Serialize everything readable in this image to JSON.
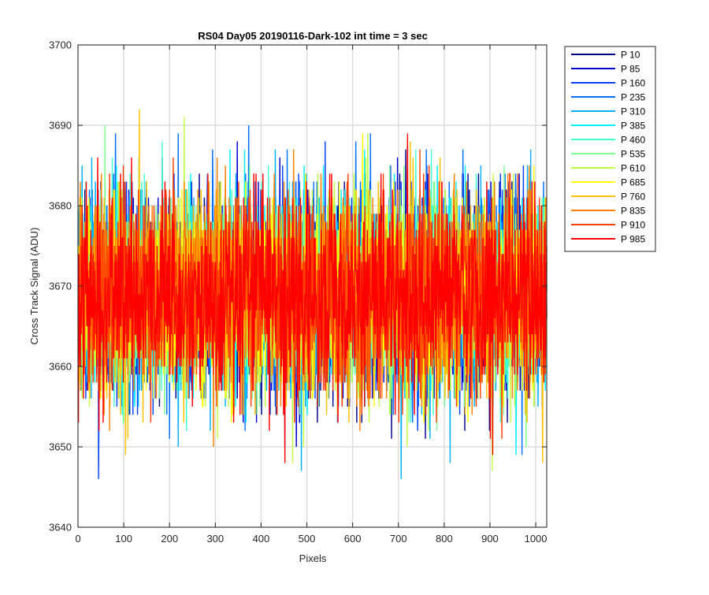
{
  "chart_data": {
    "type": "line",
    "title": "RS04 Day05 20190116-Dark-102 int time = 3 sec",
    "xlabel": "Pixels",
    "ylabel": "Cross Track Signal (ADU)",
    "xlim": [
      0,
      1024
    ],
    "ylim": [
      3640,
      3700
    ],
    "xticks": [
      "0",
      "100",
      "200",
      "300",
      "400",
      "500",
      "600",
      "700",
      "800",
      "900",
      "1000"
    ],
    "yticks": [
      "3640",
      "3650",
      "3660",
      "3670",
      "3680",
      "3690",
      "3700"
    ],
    "grid": true,
    "legend_position": "outside-top-right",
    "n_points_per_series": 1024,
    "noise_mean": 3669,
    "noise_spread": 11,
    "series": [
      {
        "name": "P 10",
        "color": "#00008f"
      },
      {
        "name": "P 85",
        "color": "#0000cf"
      },
      {
        "name": "P 160",
        "color": "#0040ff"
      },
      {
        "name": "P 235",
        "color": "#0070ff"
      },
      {
        "name": "P 310",
        "color": "#00b0ff"
      },
      {
        "name": "P 385",
        "color": "#00f0ff"
      },
      {
        "name": "P 460",
        "color": "#40ffd0"
      },
      {
        "name": "P 535",
        "color": "#80ff90"
      },
      {
        "name": "P 610",
        "color": "#c0ff40"
      },
      {
        "name": "P 685",
        "color": "#ffff00"
      },
      {
        "name": "P 760",
        "color": "#ffc000"
      },
      {
        "name": "P 835",
        "color": "#ff8000"
      },
      {
        "name": "P 910",
        "color": "#ff4000"
      },
      {
        "name": "P 985",
        "color": "#ff0000"
      }
    ]
  }
}
